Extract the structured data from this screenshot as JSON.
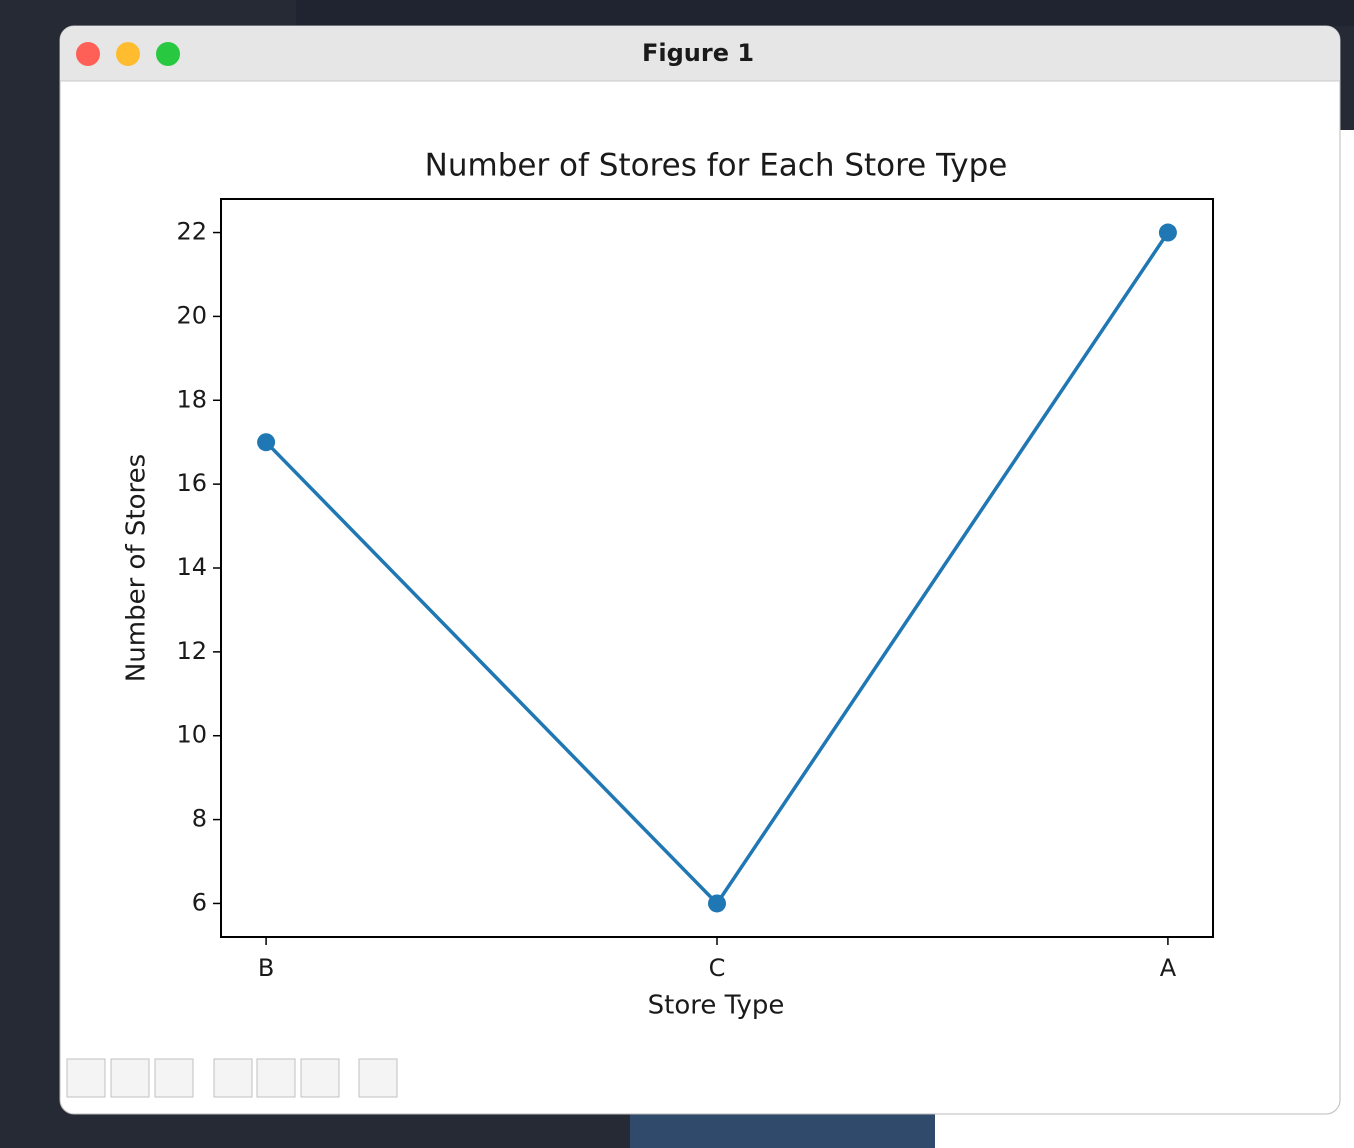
{
  "window": {
    "title": "Figure 1"
  },
  "chart_data": {
    "type": "line",
    "title": "Number of Stores for Each Store Type",
    "x_label": "Store Type",
    "y_label": "Number of Stores",
    "categories": [
      "B",
      "C",
      "A"
    ],
    "values": [
      17,
      6,
      22
    ],
    "color": "#1f77b4",
    "ylim": [
      5.2,
      22.8
    ],
    "yticks": [
      6,
      8,
      10,
      12,
      14,
      16,
      18,
      20,
      22
    ],
    "grid": false
  }
}
